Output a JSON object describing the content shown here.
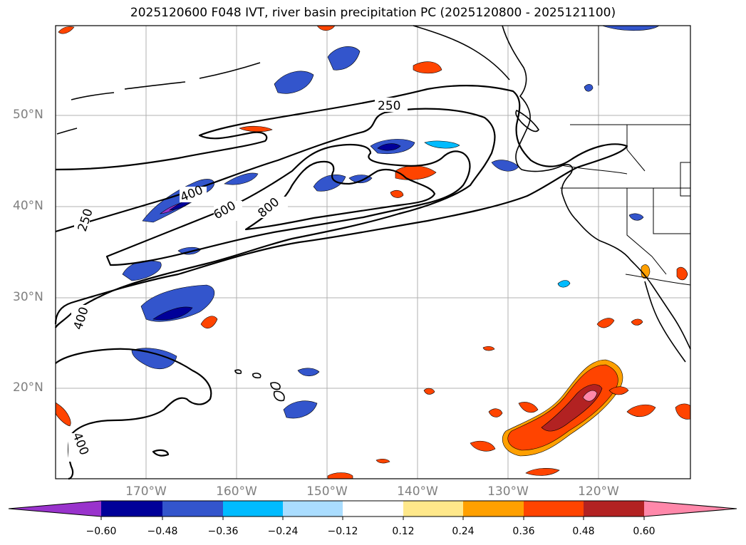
{
  "title": "2025120600 F048 IVT, river basin precipitation PC (2025120800 - 2025121100)",
  "lat_labels": [
    "50°N",
    "40°N",
    "30°N",
    "20°N"
  ],
  "lon_labels": [
    "170°W",
    "160°W",
    "150°W",
    "140°W",
    "130°W",
    "120°W"
  ],
  "ivt_contour_labels": [
    "250",
    "250",
    "400",
    "400",
    "400",
    "600",
    "800"
  ],
  "colorbar": {
    "ticks": [
      "−0.60",
      "−0.48",
      "−0.36",
      "−0.24",
      "−0.12",
      "0.12",
      "0.24",
      "0.36",
      "0.48",
      "0.60"
    ],
    "colors": [
      "#9933cc",
      "#000099",
      "#3355cc",
      "#00bbff",
      "#aaddff",
      "#ffffff",
      "#ffe88a",
      "#ffa000",
      "#ff4400",
      "#b22222",
      "#ff88aa"
    ]
  },
  "colors": {
    "negative_strong": "#000099",
    "negative_mid": "#3355cc",
    "negative_light": "#00bbff",
    "negative_pale": "#aaddff",
    "positive_pale": "#ffe88a",
    "positive_mid": "#ffa000",
    "positive_strong": "#ff4400",
    "positive_dark": "#b22222",
    "positive_max": "#ff88aa"
  }
}
